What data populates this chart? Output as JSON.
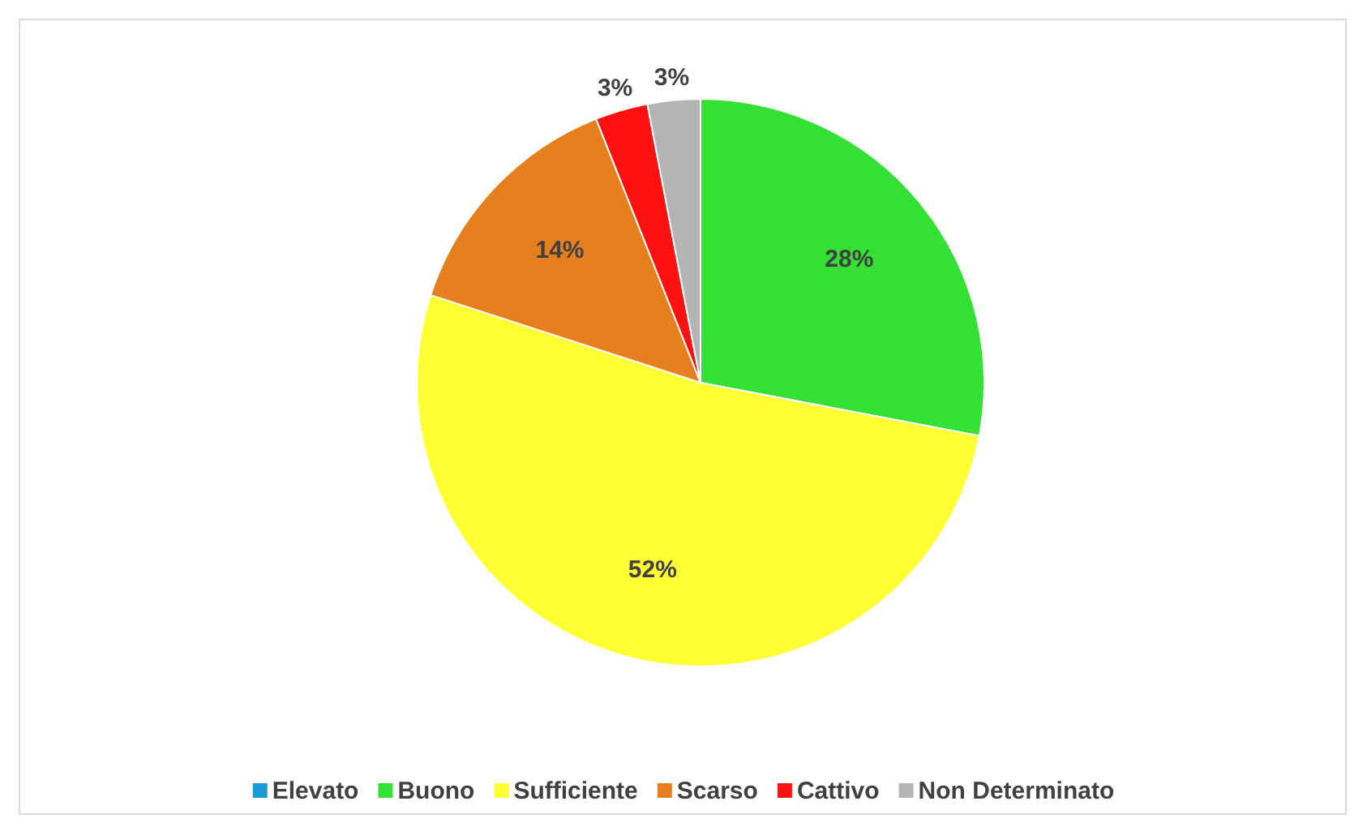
{
  "chart_data": {
    "type": "pie",
    "categories": [
      "Elevato",
      "Buono",
      "Sufficiente",
      "Scarso",
      "Cattivo",
      "Non Determinato"
    ],
    "values": [
      0,
      28,
      52,
      14,
      3,
      3
    ],
    "colors": [
      "#1e9bd7",
      "#33e033",
      "#ffff33",
      "#e6801e",
      "#ff1010",
      "#b4b4b4"
    ],
    "value_labels": [
      null,
      "28%",
      "52%",
      "14%",
      "3%",
      "3%"
    ],
    "legend": "bottom"
  }
}
